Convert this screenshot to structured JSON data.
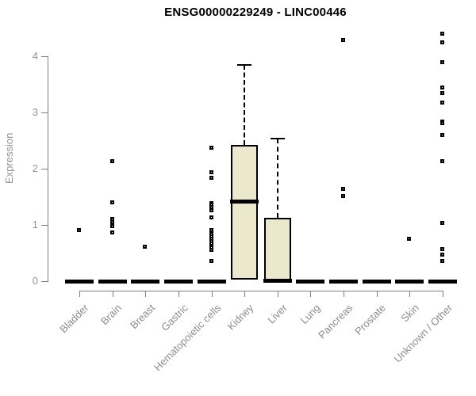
{
  "chart_data": {
    "type": "boxplot",
    "title": "ENSG00000229249 - LINC00446",
    "ylabel": "Expression",
    "ylim": [
      0,
      4
    ],
    "yticks": [
      0,
      1,
      2,
      3,
      4
    ],
    "grid": false,
    "legend": false,
    "categories": [
      "Bladder",
      "Brain",
      "Breast",
      "Gastric",
      "Hematopoietic cells",
      "Kidney",
      "Liver",
      "Lung",
      "Pancreas",
      "Prostate",
      "Skin",
      "Unknown / Other"
    ],
    "series": [
      {
        "name": "Bladder",
        "box": {
          "q1": 0,
          "median": 0,
          "q3": 0,
          "whisker_low": 0,
          "whisker_high": 0
        },
        "outliers": [
          0.92
        ]
      },
      {
        "name": "Brain",
        "box": {
          "q1": 0,
          "median": 0,
          "q3": 0,
          "whisker_low": 0,
          "whisker_high": 0
        },
        "outliers": [
          2.14,
          1.41,
          1.11,
          1.05,
          0.99,
          0.87
        ]
      },
      {
        "name": "Breast",
        "box": {
          "q1": 0,
          "median": 0,
          "q3": 0,
          "whisker_low": 0,
          "whisker_high": 0
        },
        "outliers": [
          0.62
        ]
      },
      {
        "name": "Gastric",
        "box": {
          "q1": 0,
          "median": 0,
          "q3": 0,
          "whisker_low": 0,
          "whisker_high": 0
        },
        "outliers": []
      },
      {
        "name": "Hematopoietic cells",
        "box": {
          "q1": 0,
          "median": 0,
          "q3": 0,
          "whisker_low": 0,
          "whisker_high": 0
        },
        "outliers": [
          2.38,
          1.95,
          1.84,
          1.39,
          1.36,
          1.33,
          1.27,
          1.14,
          0.92,
          0.88,
          0.84,
          0.8,
          0.76,
          0.72,
          0.68,
          0.64,
          0.6,
          0.56,
          0.37
        ]
      },
      {
        "name": "Kidney",
        "box": {
          "q1": 0.03,
          "median": 1.42,
          "q3": 2.42,
          "whisker_low": 0.03,
          "whisker_high": 3.84
        },
        "outliers": []
      },
      {
        "name": "Liver",
        "box": {
          "q1": 0,
          "median": 0.02,
          "q3": 1.13,
          "whisker_low": 0,
          "whisker_high": 2.54
        },
        "outliers": []
      },
      {
        "name": "Lung",
        "box": {
          "q1": 0,
          "median": 0,
          "q3": 0,
          "whisker_low": 0,
          "whisker_high": 0
        },
        "outliers": []
      },
      {
        "name": "Pancreas",
        "box": {
          "q1": 0,
          "median": 0,
          "q3": 0,
          "whisker_low": 0,
          "whisker_high": 0
        },
        "outliers": [
          4.29,
          1.65,
          1.52
        ]
      },
      {
        "name": "Prostate",
        "box": {
          "q1": 0,
          "median": 0,
          "q3": 0,
          "whisker_low": 0,
          "whisker_high": 0
        },
        "outliers": []
      },
      {
        "name": "Skin",
        "box": {
          "q1": 0,
          "median": 0,
          "q3": 0,
          "whisker_low": 0,
          "whisker_high": 0
        },
        "outliers": [
          0.76
        ]
      },
      {
        "name": "Unknown / Other",
        "box": {
          "q1": 0,
          "median": 0,
          "q3": 0,
          "whisker_low": 0,
          "whisker_high": 0
        },
        "outliers": [
          4.41,
          4.25,
          3.9,
          3.45,
          3.35,
          3.19,
          2.85,
          2.81,
          2.61,
          2.14,
          1.04,
          0.58,
          0.48,
          0.37
        ]
      }
    ],
    "colors": {
      "box_fill": "#ece8ce",
      "box_border": "#000000",
      "median": "#000000",
      "outlier": "#000000",
      "axis": "#7f7f7f",
      "tick_text": "#8c8c8c",
      "title_text": "#000000",
      "background": "#ffffff"
    }
  }
}
